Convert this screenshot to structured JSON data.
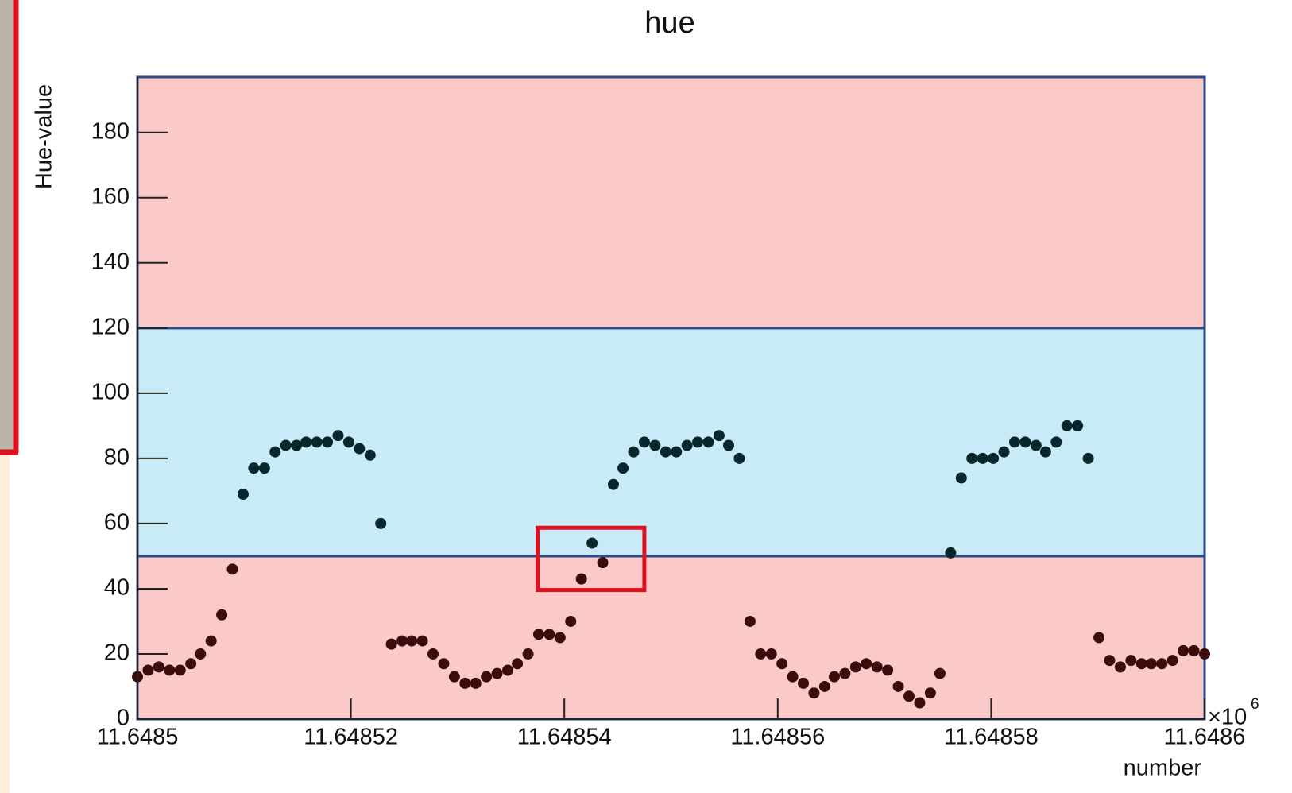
{
  "chart_data": {
    "type": "scatter",
    "title": "hue",
    "y_label": "Hue-value",
    "x_label": "number",
    "x_multiplier": {
      "base": "×10",
      "exponent": "6"
    },
    "xlim": [
      11.6485,
      11.6486
    ],
    "xticks": [
      11.6485,
      11.64852,
      11.64854,
      11.64856,
      11.64858,
      11.6486
    ],
    "ylim": [
      0,
      197
    ],
    "yticks": [
      0,
      20,
      40,
      60,
      80,
      100,
      120,
      140,
      160,
      180
    ],
    "bands": [
      {
        "from": 0,
        "to": 50,
        "color": "#fcc9c9",
        "point_color": "#3a0c0c"
      },
      {
        "from": 50,
        "to": 120,
        "color": "#c9ebf7",
        "point_color": "#06272c"
      },
      {
        "from": 120,
        "to": 197,
        "color": "#fcc9c9",
        "point_color": "#3a0c0c"
      }
    ],
    "highlight": {
      "xlim": [
        11.6485375,
        11.6485475
      ],
      "ylim": [
        39.6,
        58.7
      ],
      "color": "#e0101e"
    },
    "x": [
      11.6485,
      11.648501,
      11.648502,
      11.648503,
      11.648504,
      11.648505,
      11.6485059,
      11.6485069,
      11.6485079,
      11.6485089,
      11.6485099,
      11.6485109,
      11.6485119,
      11.6485129,
      11.6485139,
      11.6485149,
      11.6485158,
      11.6485168,
      11.6485178,
      11.6485188,
      11.6485198,
      11.6485208,
      11.6485218,
      11.6485228,
      11.6485238,
      11.6485248,
      11.6485257,
      11.6485267,
      11.6485277,
      11.6485287,
      11.6485297,
      11.6485307,
      11.6485317,
      11.6485327,
      11.6485337,
      11.6485347,
      11.6485356,
      11.6485366,
      11.6485376,
      11.6485386,
      11.6485396,
      11.6485406,
      11.6485416,
      11.6485426,
      11.6485436,
      11.6485446,
      11.6485455,
      11.6485465,
      11.6485475,
      11.6485485,
      11.6485495,
      11.6485505,
      11.6485515,
      11.6485525,
      11.6485535,
      11.6485545,
      11.6485554,
      11.6485564,
      11.6485574,
      11.6485584,
      11.6485594,
      11.6485604,
      11.6485614,
      11.6485624,
      11.6485634,
      11.6485644,
      11.6485653,
      11.6485663,
      11.6485673,
      11.6485683,
      11.6485693,
      11.6485703,
      11.6485713,
      11.6485723,
      11.6485733,
      11.6485743,
      11.6485752,
      11.6485762,
      11.6485772,
      11.6485782,
      11.6485792,
      11.6485802,
      11.6485812,
      11.6485822,
      11.6485832,
      11.6485842,
      11.6485851,
      11.6485861,
      11.6485871,
      11.6485881,
      11.6485891,
      11.6485901,
      11.6485911,
      11.6485921,
      11.6485931,
      11.6485941,
      11.648595,
      11.648596,
      11.648597,
      11.648598,
      11.648599,
      11.6486
    ],
    "values": [
      13,
      15,
      16,
      15,
      15,
      17,
      20,
      24,
      32,
      46,
      69,
      77,
      77,
      82,
      84,
      84,
      85,
      85,
      85,
      87,
      85,
      83,
      81,
      60,
      23,
      24,
      24,
      24,
      20,
      17,
      13,
      11,
      11,
      13,
      14,
      15,
      17,
      20,
      26,
      26,
      25,
      30,
      43,
      54,
      48,
      72,
      77,
      82,
      85,
      84,
      82,
      82,
      84,
      85,
      85,
      87,
      84,
      80,
      30,
      20,
      20,
      17,
      13,
      11,
      8,
      10,
      13,
      14,
      16,
      17,
      16,
      15,
      10,
      7,
      5,
      8,
      14,
      51,
      74,
      80,
      80,
      80,
      82,
      85,
      85,
      84,
      82,
      85,
      90,
      90,
      80,
      25,
      18,
      16,
      18,
      17,
      17,
      17,
      18,
      21,
      21,
      20
    ]
  }
}
